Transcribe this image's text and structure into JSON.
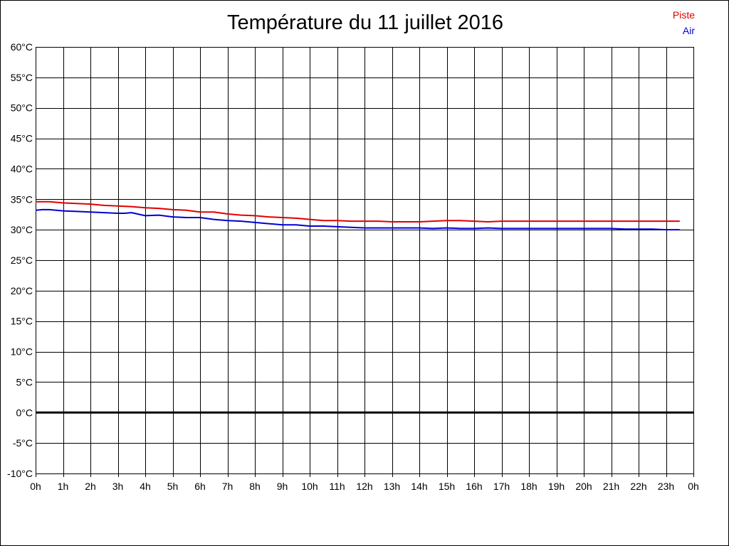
{
  "chart_data": {
    "type": "line",
    "title": "Température du 11 juillet 2016",
    "ylim": [
      -10,
      60
    ],
    "y_ticks": [
      "60°C",
      "55°C",
      "50°C",
      "45°C",
      "40°C",
      "35°C",
      "30°C",
      "25°C",
      "20°C",
      "15°C",
      "10°C",
      "5°C",
      "0°C",
      "-5°C",
      "-10°C"
    ],
    "y_tick_values": [
      60,
      55,
      50,
      45,
      40,
      35,
      30,
      25,
      20,
      15,
      10,
      5,
      0,
      -5,
      -10
    ],
    "x_ticks": [
      "0h",
      "1h",
      "2h",
      "3h",
      "4h",
      "5h",
      "6h",
      "7h",
      "8h",
      "9h",
      "10h",
      "11h",
      "12h",
      "13h",
      "14h",
      "15h",
      "16h",
      "17h",
      "18h",
      "19h",
      "20h",
      "21h",
      "22h",
      "23h",
      "0h"
    ],
    "x_tick_values": [
      0,
      1,
      2,
      3,
      4,
      5,
      6,
      7,
      8,
      9,
      10,
      11,
      12,
      13,
      14,
      15,
      16,
      17,
      18,
      19,
      20,
      21,
      22,
      23,
      24
    ],
    "xlim": [
      0,
      24
    ],
    "grid": true,
    "zero_line": true,
    "legend_position": "top-right",
    "series": [
      {
        "name": "Piste",
        "color": "#e00000",
        "x": [
          0,
          0.5,
          1,
          1.5,
          2,
          2.5,
          3,
          3.5,
          4,
          4.5,
          5,
          5.5,
          6,
          6.5,
          7,
          7.5,
          8,
          8.5,
          9,
          9.5,
          10,
          10.5,
          11,
          11.5,
          12,
          12.5,
          13,
          13.5,
          14,
          14.5,
          15,
          15.5,
          16,
          16.5,
          17,
          17.5,
          18,
          18.5,
          19,
          19.5,
          20,
          20.5,
          21,
          21.5,
          22,
          22.5,
          23,
          23.5
        ],
        "values": [
          34.6,
          34.6,
          34.4,
          34.3,
          34.2,
          34.0,
          33.9,
          33.8,
          33.6,
          33.5,
          33.3,
          33.2,
          32.9,
          32.9,
          32.6,
          32.4,
          32.3,
          32.1,
          32.0,
          31.9,
          31.7,
          31.5,
          31.5,
          31.4,
          31.4,
          31.4,
          31.3,
          31.3,
          31.3,
          31.4,
          31.5,
          31.5,
          31.4,
          31.3,
          31.4,
          31.4,
          31.4,
          31.4,
          31.4,
          31.4,
          31.4,
          31.4,
          31.4,
          31.4,
          31.4,
          31.4,
          31.4,
          31.4
        ]
      },
      {
        "name": "Air",
        "color": "#0000d0",
        "x": [
          0,
          0.25,
          0.5,
          1,
          1.5,
          2,
          2.5,
          3,
          3.25,
          3.5,
          4,
          4.5,
          5,
          5.5,
          6,
          6.5,
          7,
          7.5,
          8,
          8.5,
          9,
          9.5,
          10,
          10.5,
          11,
          11.5,
          12,
          12.5,
          13,
          13.5,
          14,
          14.5,
          15,
          15.5,
          16,
          16.5,
          17,
          17.5,
          18,
          18.5,
          19,
          19.5,
          20,
          20.5,
          21,
          21.5,
          22,
          22.5,
          23,
          23.5
        ],
        "values": [
          33.2,
          33.3,
          33.3,
          33.1,
          33.0,
          32.9,
          32.8,
          32.7,
          32.7,
          32.8,
          32.3,
          32.4,
          32.1,
          32.0,
          32.0,
          31.7,
          31.5,
          31.4,
          31.2,
          31.0,
          30.8,
          30.8,
          30.6,
          30.6,
          30.5,
          30.4,
          30.3,
          30.3,
          30.3,
          30.3,
          30.3,
          30.2,
          30.3,
          30.2,
          30.2,
          30.3,
          30.2,
          30.2,
          30.2,
          30.2,
          30.2,
          30.2,
          30.2,
          30.2,
          30.2,
          30.1,
          30.1,
          30.1,
          30.0,
          30.0
        ]
      }
    ]
  }
}
